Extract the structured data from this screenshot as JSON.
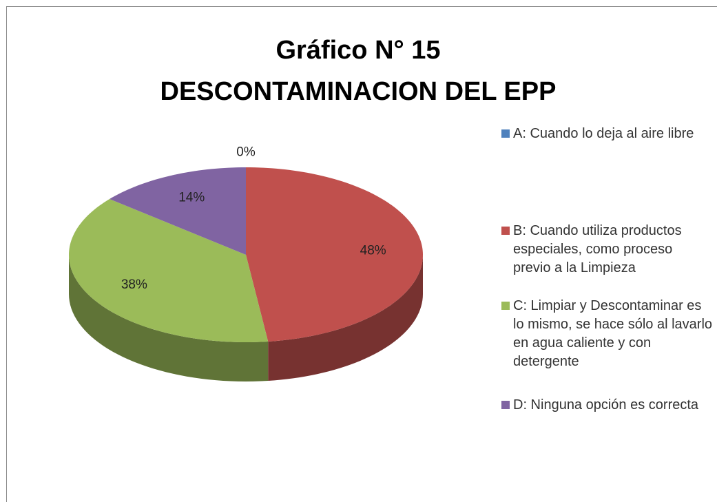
{
  "chart_data": {
    "type": "pie",
    "title": "Gráfico N° 15",
    "subtitle": "DESCONTAMINACION DEL EPP",
    "categories": [
      "A: Cuando lo deja al aire libre",
      "B: Cuando utiliza productos especiales, como proceso previo a la Limpieza",
      "C: Limpiar y Descontaminar es lo mismo, se hace sólo al lavarlo en agua caliente y con detergente",
      "D: Ninguna opción es correcta"
    ],
    "values": [
      0,
      48,
      38,
      14
    ],
    "value_labels": [
      "0%",
      "48%",
      "38%",
      "14%"
    ],
    "colors": [
      "#4f81bd",
      "#c0504d",
      "#9bbb59",
      "#8064a2"
    ],
    "legend": "right"
  }
}
